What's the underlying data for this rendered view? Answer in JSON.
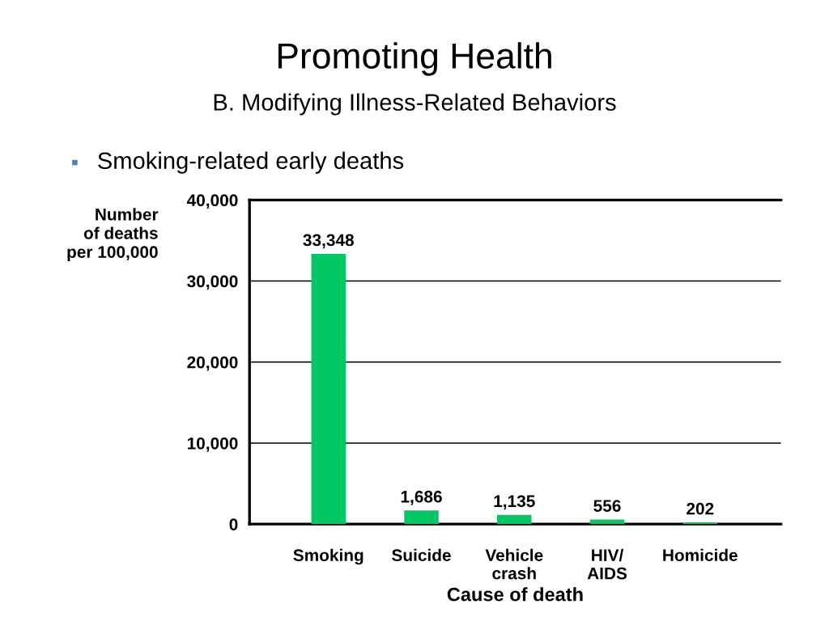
{
  "chart_data": {
    "type": "bar",
    "title": "Promoting Health",
    "subtitle": "B. Modifying Illness-Related Behaviors",
    "annotations": [
      "Smoking-related early deaths"
    ],
    "ylabel": "Number\nof deaths\nper 100,000",
    "xlabel": "Cause of death",
    "categories": [
      "Smoking",
      "Suicide",
      "Vehicle\ncrash",
      "HIV/\nAIDS",
      "Homicide"
    ],
    "values": [
      33348,
      1686,
      1135,
      556,
      202
    ],
    "color": "#00c864",
    "value_labels": [
      "33,348",
      "1,686",
      "1,135",
      "556",
      "202"
    ],
    "ylim": [
      0,
      40000
    ],
    "yticks": [
      {
        "value": 0,
        "label": "0"
      },
      {
        "value": 10000,
        "label": "10,000"
      },
      {
        "value": 20000,
        "label": "20,000"
      },
      {
        "value": 30000,
        "label": "30,000"
      },
      {
        "value": 40000,
        "label": "40,000"
      }
    ],
    "grid": "y"
  }
}
